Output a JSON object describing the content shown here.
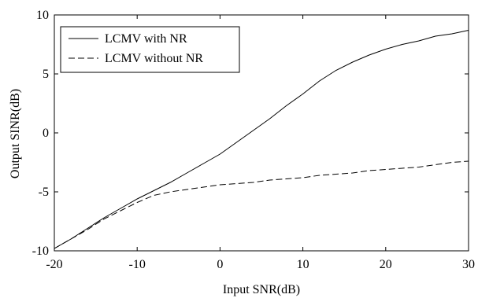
{
  "chart_data": {
    "type": "line",
    "title": "",
    "xlabel": "Input SNR(dB)",
    "ylabel": "Output SINR(dB)",
    "xlim": [
      -20,
      30
    ],
    "ylim": [
      -10,
      10
    ],
    "xticks": [
      -20,
      -10,
      0,
      10,
      20,
      30
    ],
    "yticks": [
      -10,
      -5,
      0,
      5,
      10
    ],
    "grid": false,
    "legend_position": "top-left",
    "series": [
      {
        "name": "LCMV with NR",
        "style": "solid",
        "color": "#000000",
        "x": [
          -20,
          -18,
          -16,
          -14,
          -12,
          -10,
          -8,
          -6,
          -4,
          -2,
          0,
          2,
          4,
          6,
          8,
          10,
          12,
          14,
          16,
          18,
          20,
          22,
          24,
          26,
          28,
          30
        ],
        "y": [
          -9.8,
          -9.0,
          -8.1,
          -7.2,
          -6.4,
          -5.6,
          -4.9,
          -4.2,
          -3.4,
          -2.6,
          -1.8,
          -0.8,
          0.2,
          1.2,
          2.3,
          3.3,
          4.4,
          5.3,
          6.0,
          6.6,
          7.1,
          7.5,
          7.8,
          8.2,
          8.4,
          8.7
        ]
      },
      {
        "name": "LCMV without NR",
        "style": "dashed",
        "color": "#000000",
        "x": [
          -20,
          -18,
          -16,
          -14,
          -12,
          -10,
          -8,
          -6,
          -4,
          -2,
          0,
          2,
          4,
          6,
          8,
          10,
          12,
          14,
          16,
          18,
          20,
          22,
          24,
          26,
          28,
          30
        ],
        "y": [
          -9.8,
          -9.0,
          -8.2,
          -7.3,
          -6.6,
          -5.9,
          -5.3,
          -5.0,
          -4.8,
          -4.6,
          -4.4,
          -4.3,
          -4.2,
          -4.0,
          -3.9,
          -3.8,
          -3.6,
          -3.5,
          -3.4,
          -3.2,
          -3.1,
          -3.0,
          -2.9,
          -2.7,
          -2.5,
          -2.4
        ]
      }
    ]
  }
}
